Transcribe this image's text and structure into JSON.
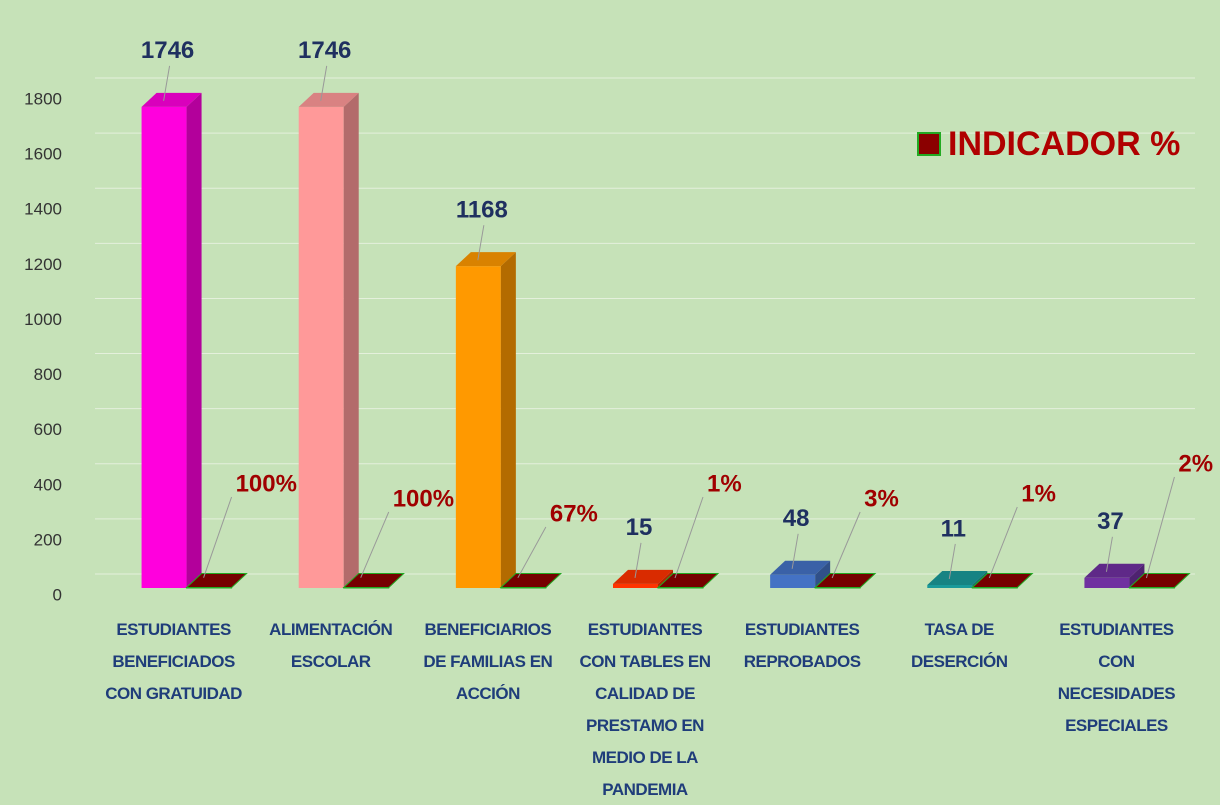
{
  "chart_data": {
    "type": "bar3d",
    "categories": [
      "ESTUDIANTES BENEFICIADOS CON GRATUIDAD",
      "ALIMENTACIÓN ESCOLAR",
      "BENEFICIARIOS DE FAMILIAS EN ACCIÓN",
      "ESTUDIANTES CON TABLES EN CALIDAD DE PRESTAMO EN MEDIO DE LA PANDEMIA",
      "ESTUDIANTES REPROBADOS",
      "TASA DE DESERCIÓN",
      "ESTUDIANTES CON NECESIDADES ESPECIALES"
    ],
    "series": [
      {
        "colors": [
          "#ff00dd",
          "#ff9999",
          "#ff9900",
          "#ff3300",
          "#4472c4",
          "#1a9a9a",
          "#7030a0"
        ],
        "values": [
          1746,
          1746,
          1168,
          15,
          48,
          11,
          37
        ]
      },
      {
        "name": "INDICADOR %",
        "color": "#8b0000",
        "values": [
          1,
          1,
          0.67,
          0.01,
          0.03,
          0.01,
          0.02
        ],
        "value_labels": [
          "100%",
          "100%",
          "67%",
          "1%",
          "3%",
          "1%",
          "2%"
        ]
      }
    ],
    "ylim": [
      0,
      1800
    ],
    "yticks": [
      0,
      200,
      400,
      600,
      800,
      1000,
      1200,
      1400,
      1600,
      1800
    ],
    "grid": true,
    "legend": "upper right"
  }
}
